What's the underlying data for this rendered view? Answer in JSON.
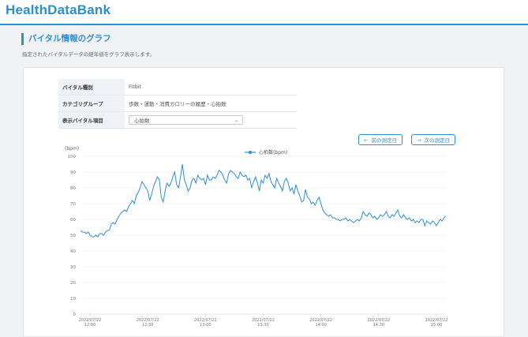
{
  "app": {
    "title": "HealthDataBank"
  },
  "page": {
    "title": "バイタル情報のグラフ",
    "description": "指定されたバイタルデータの経年値をグラフ表示します。"
  },
  "info": {
    "rows": [
      {
        "label": "バイタル種別",
        "value": "Fitbit"
      },
      {
        "label": "カテゴリグループ",
        "value": "歩数・運動・消費カロリーの履歴・心拍数"
      },
      {
        "label": "表示バイタル項目",
        "value": "心拍数"
      }
    ]
  },
  "nav": {
    "prev_label": "前の測定日",
    "next_label": "次の測定日"
  },
  "colors": {
    "accent": "#2d8ed1",
    "line": "#2d8ed1",
    "grid": "#e8eaed"
  },
  "chart_data": {
    "type": "line",
    "title": "",
    "ylabel": "(bpm)",
    "xlabel": "",
    "ylim": [
      0,
      100
    ],
    "y_ticks": [
      0,
      10,
      20,
      30,
      40,
      50,
      60,
      70,
      80,
      90,
      100
    ],
    "grid": true,
    "legend": "top-center",
    "x_tick_labels": [
      [
        "2022/07/22",
        "12:00"
      ],
      [
        "2022/07/22",
        "12:30"
      ],
      [
        "2022/07/22",
        "13:00"
      ],
      [
        "2022/07/22",
        "13:30"
      ],
      [
        "2022/07/22",
        "14:00"
      ],
      [
        "2022/07/22",
        "14:30"
      ],
      [
        "2022/07/22",
        "15:00"
      ]
    ],
    "series": [
      {
        "name": "心拍数(bpm)",
        "values": [
          53,
          52,
          52,
          51,
          52,
          50,
          49,
          49,
          50,
          49,
          51,
          51,
          50,
          52,
          53,
          53,
          57,
          58,
          57,
          60,
          62,
          64,
          65,
          66,
          65,
          68,
          70,
          72,
          70,
          75,
          77,
          80,
          84,
          82,
          80,
          78,
          72,
          76,
          81,
          84,
          87,
          85,
          74,
          71,
          78,
          83,
          81,
          83,
          87,
          90,
          82,
          80,
          87,
          95,
          85,
          82,
          78,
          80,
          85,
          86,
          83,
          88,
          86,
          85,
          86,
          82,
          88,
          85,
          85,
          87,
          86,
          88,
          91,
          90,
          88,
          85,
          83,
          89,
          91,
          90,
          89,
          87,
          86,
          90,
          88,
          87,
          88,
          85,
          86,
          80,
          84,
          87,
          83,
          78,
          85,
          83,
          88,
          86,
          89,
          84,
          82,
          80,
          86,
          83,
          81,
          78,
          84,
          86,
          83,
          78,
          80,
          76,
          82,
          78,
          75,
          71,
          72,
          79,
          74,
          73,
          70,
          71,
          69,
          72,
          74,
          70,
          66,
          64,
          63,
          62,
          63,
          61,
          61,
          60,
          60,
          59,
          60,
          60,
          61,
          59,
          60,
          59,
          58,
          59,
          60,
          59,
          61,
          65,
          63,
          62,
          64,
          63,
          61,
          62,
          60,
          61,
          63,
          62,
          63,
          65,
          62,
          61,
          63,
          62,
          64,
          66,
          62,
          61,
          63,
          61,
          60,
          61,
          59,
          60,
          58,
          59,
          58,
          60,
          60,
          56,
          59,
          58,
          57,
          59,
          58,
          56,
          58,
          60,
          59,
          61,
          62
        ]
      }
    ]
  }
}
